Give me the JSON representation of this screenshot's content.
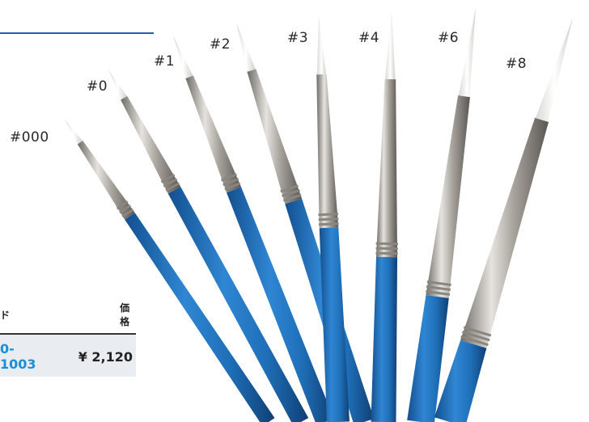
{
  "brush_sizes": [
    "#000",
    "#0",
    "#1",
    "#2",
    "#3",
    "#4",
    "#6",
    "#8"
  ],
  "table": {
    "header_code": "ド",
    "header_price": "価格",
    "code_value": "0-1003",
    "price_value": "¥ 2,120"
  },
  "colors": {
    "accent_rule": "#1f63b0",
    "handle_blue": "#1f6fb8",
    "ferrule_silver": "#b9b4ae",
    "bristle_white": "#f4f4f2",
    "code_blue": "#1a8fd6"
  }
}
